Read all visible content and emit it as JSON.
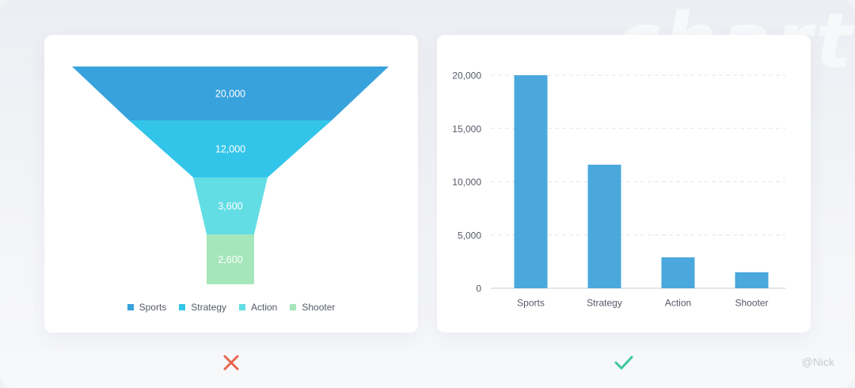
{
  "credit": "@Nick",
  "verdicts": {
    "left": "cross-icon",
    "right": "check-icon"
  },
  "colors": {
    "cross": "#e8654f",
    "check": "#3cc6a0",
    "bar": "#4aa8dd",
    "grid": "#e3e6ec",
    "axis": "#c8ccd4",
    "label": "#555a66",
    "funnel_text": "#ffffff"
  },
  "chart_data": [
    {
      "type": "funnel",
      "categories": [
        "Sports",
        "Strategy",
        "Action",
        "Shooter"
      ],
      "values": [
        20000,
        12000,
        3600,
        2600
      ],
      "value_labels": [
        "20,000",
        "12,000",
        "3,600",
        "2,600"
      ],
      "colors": [
        "#38a2dc",
        "#33c5e9",
        "#63dde4",
        "#a6e6bb"
      ],
      "legend": {
        "position": "bottom",
        "entries": [
          "Sports",
          "Strategy",
          "Action",
          "Shooter"
        ]
      }
    },
    {
      "type": "bar",
      "categories": [
        "Sports",
        "Strategy",
        "Action",
        "Shooter"
      ],
      "values": [
        20000,
        11600,
        2900,
        1500
      ],
      "ylim": [
        0,
        20000
      ],
      "yticks": [
        0,
        5000,
        10000,
        15000,
        20000
      ],
      "ytick_labels": [
        "0",
        "5,000",
        "10,000",
        "15,000",
        "20,000"
      ],
      "grid": true,
      "color": "#4aa8dd"
    }
  ]
}
